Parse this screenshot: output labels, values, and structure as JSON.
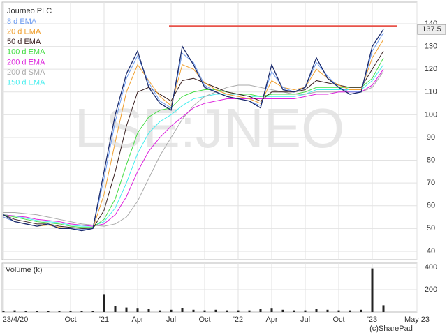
{
  "chart_data": [
    {
      "type": "line",
      "title": "Journeo PLC",
      "watermark": "LSE:JNEO",
      "color": "#1a2a6c",
      "values": [
        56,
        53,
        52,
        51,
        52,
        50,
        50,
        49,
        50,
        75,
        100,
        118,
        128,
        112,
        105,
        102,
        130,
        122,
        112,
        110,
        108,
        107,
        106,
        103,
        122,
        111,
        110,
        112,
        125,
        116,
        112,
        109,
        110,
        130,
        137.5,
        null,
        null,
        null
      ],
      "series": [
        {
          "name": "8 d EMA",
          "color": "#6c9bf0",
          "values": [
            55,
            53,
            52,
            51,
            52,
            50,
            50,
            49.5,
            50,
            72,
            97,
            116,
            126,
            114,
            106,
            103,
            127,
            123,
            113,
            110,
            108,
            107,
            106,
            104,
            119,
            112,
            110,
            112,
            123,
            117,
            112,
            110,
            110,
            128,
            136,
            null,
            null,
            null
          ]
        },
        {
          "name": "20 d EMA",
          "color": "#f0a030",
          "values": [
            55,
            53,
            52,
            51,
            51.5,
            50.5,
            50,
            49.5,
            50,
            65,
            88,
            110,
            122,
            115,
            108,
            104,
            122,
            120,
            114,
            111,
            109,
            108,
            107,
            105,
            115,
            112,
            111,
            112,
            120,
            116,
            113,
            111,
            111,
            125,
            133,
            null,
            null,
            null
          ]
        },
        {
          "name": "50 d EMA",
          "color": "#3a2020",
          "values": [
            56,
            54,
            53,
            52,
            52,
            51,
            50.5,
            50,
            50,
            58,
            75,
            95,
            110,
            112,
            109,
            106,
            115,
            116,
            114,
            112,
            110,
            109,
            108,
            106,
            110,
            110,
            110,
            111,
            115,
            114,
            113,
            112,
            112,
            120,
            128,
            null,
            null,
            null
          ]
        },
        {
          "name": "100 d EMA",
          "color": "#44dd44",
          "values": [
            56,
            55,
            54,
            53,
            52.5,
            52,
            51,
            50.5,
            50.5,
            54,
            63,
            78,
            92,
            99,
            102,
            103,
            108,
            110,
            111,
            111,
            110,
            109,
            109,
            108,
            109,
            109,
            109,
            110,
            112,
            112,
            112,
            112,
            112,
            116,
            125,
            null,
            null,
            null
          ]
        },
        {
          "name": "200 d EMA",
          "color": "#dd22dd",
          "values": [
            56,
            55.5,
            55,
            54,
            53.5,
            53,
            52,
            51.5,
            51,
            52,
            56,
            64,
            75,
            84,
            90,
            95,
            99,
            103,
            105,
            106,
            107,
            107,
            107,
            107,
            107,
            107,
            107,
            108,
            109,
            109,
            110,
            110,
            110,
            113,
            120,
            null,
            null,
            null
          ]
        },
        {
          "name": "200 d SMA",
          "color": "#aaaaaa",
          "values": [
            57,
            57,
            56.5,
            56,
            55,
            54,
            53,
            52,
            51.5,
            51,
            52,
            55,
            62,
            72,
            82,
            90,
            98,
            104,
            108,
            110,
            112,
            113,
            113,
            112,
            111,
            110,
            109,
            109,
            110,
            110,
            110,
            110,
            110,
            112,
            119,
            null,
            null,
            null
          ]
        },
        {
          "name": "150 d EMA",
          "color": "#44eeee",
          "values": [
            56,
            55.5,
            54.5,
            53.5,
            53,
            52.5,
            51.5,
            51,
            51,
            53,
            59,
            70,
            83,
            92,
            97,
            100,
            104,
            107,
            108,
            109,
            109,
            109,
            108,
            108,
            108,
            108,
            108,
            109,
            111,
            111,
            111,
            111,
            111,
            115,
            122,
            null,
            null,
            null
          ]
        }
      ],
      "hline": {
        "value": 139,
        "color": "#e8534a"
      },
      "ylim": [
        36.3,
        149.5
      ],
      "yticks": [
        40,
        50,
        60,
        70,
        80,
        90,
        100,
        110,
        120,
        130,
        140
      ],
      "grid": true
    },
    {
      "type": "bar",
      "title": "Volume (k)",
      "color": "#222222",
      "source": "(c)SharePad",
      "categories": [
        "23/4/20",
        null,
        null,
        null,
        null,
        null,
        "Oct",
        null,
        null,
        "'21",
        null,
        null,
        "Apr",
        null,
        null,
        "Jul",
        null,
        null,
        "Oct",
        null,
        null,
        "'22",
        null,
        null,
        "Apr",
        null,
        null,
        "Jul",
        null,
        null,
        "Oct",
        null,
        null,
        "'23",
        null,
        null,
        null,
        "May 23"
      ],
      "values": [
        10,
        15,
        8,
        8,
        10,
        8,
        12,
        10,
        10,
        160,
        50,
        40,
        30,
        25,
        15,
        20,
        35,
        20,
        15,
        20,
        15,
        15,
        15,
        25,
        30,
        20,
        15,
        15,
        25,
        20,
        15,
        15,
        20,
        390,
        60,
        null,
        null,
        null
      ],
      "ylim": [
        0,
        437.5
      ],
      "yticks": [
        200,
        400
      ],
      "grid": true
    }
  ]
}
